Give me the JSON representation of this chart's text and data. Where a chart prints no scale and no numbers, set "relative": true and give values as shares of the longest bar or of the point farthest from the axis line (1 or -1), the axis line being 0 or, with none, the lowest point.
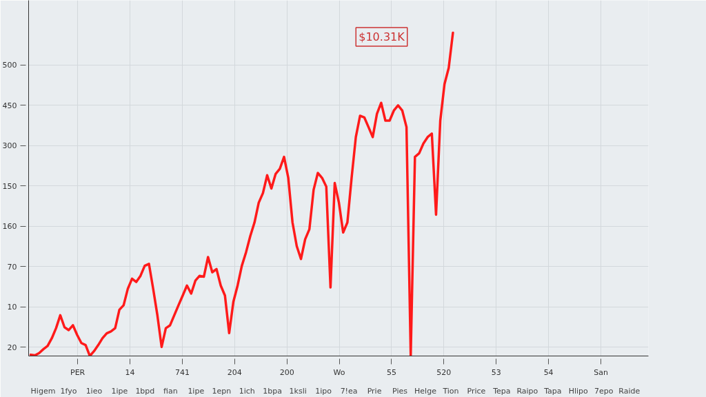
{
  "chart_data": {
    "type": "line",
    "relative": true,
    "categories": [
      null,
      null,
      null,
      null,
      null,
      null,
      null,
      null,
      null,
      null,
      null,
      null,
      null,
      null,
      null,
      null,
      null,
      null,
      null,
      null,
      null,
      null,
      null,
      null,
      null,
      null,
      null,
      null,
      null,
      null,
      null,
      null,
      null,
      null,
      null,
      null,
      null,
      null,
      null,
      null,
      null,
      null,
      null,
      null,
      null,
      null,
      null,
      null,
      null,
      null,
      null,
      null,
      null,
      null,
      null,
      null,
      null,
      null,
      null,
      null,
      null,
      null,
      null,
      null,
      null,
      null,
      null,
      null,
      null,
      null,
      null,
      null,
      null,
      null,
      null,
      null,
      null,
      null,
      null,
      null,
      null,
      null,
      null,
      null,
      null,
      null,
      null,
      null,
      null,
      null,
      null,
      null,
      null,
      null,
      null,
      null,
      null,
      null,
      null,
      null,
      null
    ],
    "series": [
      {
        "color": "#ff1a1a",
        "values": [
          0.004,
          0.002,
          0.009,
          0.021,
          0.031,
          0.055,
          0.086,
          0.126,
          0.089,
          0.08,
          0.095,
          0.065,
          0.04,
          0.034,
          0,
          0.015,
          0.034,
          0.055,
          0.07,
          0.076,
          0.086,
          0.143,
          0.157,
          0.208,
          0.239,
          0.229,
          0.248,
          0.279,
          0.285,
          0.208,
          0.126,
          0.028,
          0.086,
          0.095,
          0.126,
          0.157,
          0.187,
          0.218,
          0.193,
          0.233,
          0.248,
          0.245,
          0.306,
          0.259,
          0.269,
          0.218,
          0.187,
          0.071,
          0.168,
          0.218,
          0.279,
          0.321,
          0.371,
          0.413,
          0.474,
          0.504,
          0.559,
          0.518,
          0.563,
          0.579,
          0.616,
          0.551,
          0.413,
          0.34,
          0.3,
          0.361,
          0.392,
          0.514,
          0.566,
          0.551,
          0.524,
          0.212,
          0.535,
          0.474,
          0.382,
          0.413,
          0.551,
          0.677,
          0.743,
          0.738,
          0.708,
          0.677,
          0.749,
          0.783,
          0.728,
          0.728,
          0.759,
          0.775,
          0.759,
          0.708,
          0,
          0.616,
          0.627,
          0.657,
          0.677,
          0.688,
          0.437,
          0.728,
          0.841,
          0.891,
          1
        ]
      }
    ],
    "grid": true,
    "annotations": [
      "$10.31K",
      "500",
      "450",
      "300",
      "150",
      "160",
      "70",
      "10",
      "20",
      "PER",
      "14",
      "741",
      "204",
      "200",
      "Wo",
      "55",
      "520",
      "53",
      "54",
      "San",
      "Higem",
      "1fyo",
      "1ieo",
      "1ipe",
      "1bpd",
      "fian",
      "1ipe",
      "1epn",
      "1ich",
      "1bpa",
      "1ksli",
      "1ipo",
      "7!ea",
      "Prie",
      "Pies",
      "Helge",
      "Tion",
      "Price",
      "Tepa",
      "Raipo",
      "Tapa",
      "Hlipo",
      "7epo",
      "Raide"
    ]
  }
}
